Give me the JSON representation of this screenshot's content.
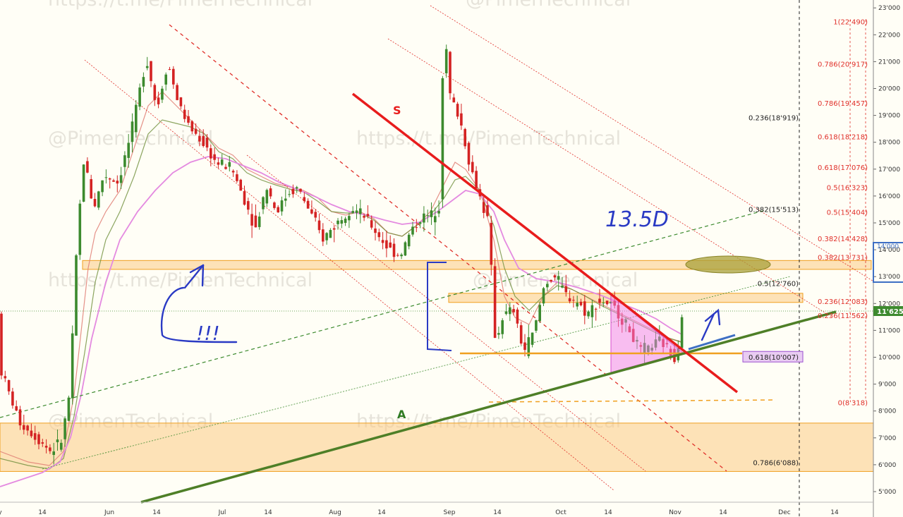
{
  "chart_data": {
    "type": "candlestick",
    "y_axis": {
      "range": [
        4700,
        23100
      ],
      "ticks": [
        "5'000",
        "6'000",
        "7'000",
        "8'000",
        "9'000",
        "10'000",
        "11'000",
        "12'000",
        "13'000",
        "14'000",
        "15'000",
        "16'000",
        "17'000",
        "18'000",
        "19'000",
        "20'000",
        "21'000",
        "22'000",
        "23'000"
      ]
    },
    "x_axis": {
      "ticks": [
        "y",
        "14",
        "Jun",
        "14",
        "Jul",
        "14",
        "Aug",
        "14",
        "Sep",
        "14",
        "Oct",
        "14",
        "Nov",
        "14",
        "Dec",
        "14"
      ]
    },
    "last_price": "11'625",
    "right_tag_price": "14'000",
    "watermarks": [
      "https://t.me/PimenTechnical",
      "@PimenTechnical"
    ],
    "fib_black": [
      {
        "label": "0.236(18'919)",
        "value": 18919
      },
      {
        "label": "0.382(15'513)",
        "value": 15513
      },
      {
        "label": "0.5(12'760)",
        "value": 12760
      },
      {
        "label": "0.618(10'007)",
        "value": 10007
      },
      {
        "label": "0.786(6'088)",
        "value": 6088
      }
    ],
    "fib_red": [
      {
        "label": "1(22'490)",
        "value": 22490
      },
      {
        "label": "0.786(20'917)",
        "value": 20917
      },
      {
        "label": "0.786(19'457)",
        "value": 19457
      },
      {
        "label": "0.618(18'218)",
        "value": 18218
      },
      {
        "label": "0.618(17'076)",
        "value": 17076
      },
      {
        "label": "0.5(16'323)",
        "value": 16323
      },
      {
        "label": "0.5(15'404)",
        "value": 15404
      },
      {
        "label": "0.382(14'428)",
        "value": 14428
      },
      {
        "label": "0.382(13'731)",
        "value": 13731
      },
      {
        "label": "0.236(12'083)",
        "value": 12083
      },
      {
        "label": "0.236(11'562)",
        "value": 11562
      },
      {
        "label": "0(8'318)",
        "value": 8318
      }
    ],
    "zones": [
      {
        "name": "support-zone-low",
        "from": 5750,
        "to": 7550
      },
      {
        "name": "resistance-zone-13k",
        "from": 13270,
        "to": 13600
      },
      {
        "name": "resistance-zone-12k",
        "from": 12040,
        "to": 12380
      }
    ],
    "annotations": {
      "s_label": "S",
      "a_label": "A",
      "handwritten_target": "13.5D",
      "handwritten_marks": "!!!"
    }
  }
}
